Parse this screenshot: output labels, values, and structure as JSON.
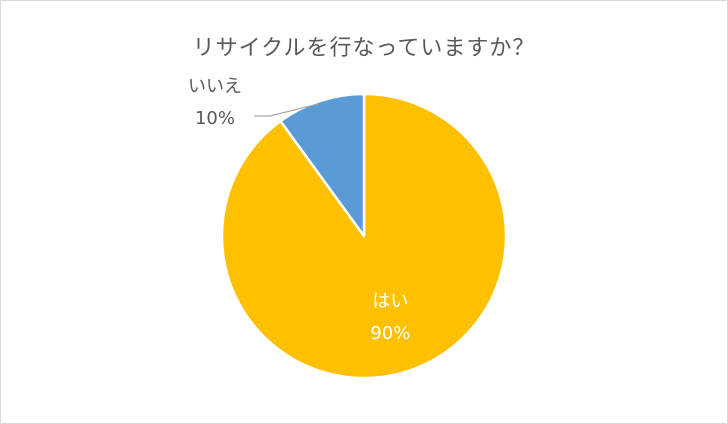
{
  "chart_data": {
    "type": "pie",
    "title": "リサイクルを行なっていますか？",
    "slices": [
      {
        "label": "はい",
        "value": 90,
        "percent_label": "90%",
        "color": "#FFC000"
      },
      {
        "label": "いいえ",
        "value": 10,
        "percent_label": "10%",
        "color": "#5B9BD5"
      }
    ],
    "start_angle_deg": 0,
    "direction": "clockwise",
    "legend": "none",
    "label_colors": {
      "inside": "#FFFFFF",
      "outside": "#595959"
    }
  }
}
